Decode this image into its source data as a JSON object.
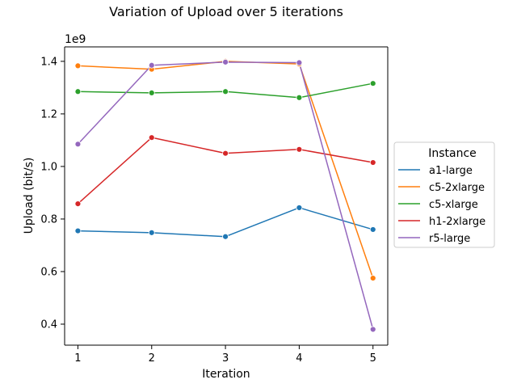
{
  "chart_data": {
    "type": "line",
    "title": "Variation of Upload over 5 iterations",
    "xlabel": "Iteration",
    "ylabel": "Upload (bit/s)",
    "y_offset_label": "1e9",
    "x": [
      1,
      2,
      3,
      4,
      5
    ],
    "x_tick_labels": [
      "1",
      "2",
      "3",
      "4",
      "5"
    ],
    "xlim": [
      0.82,
      5.2
    ],
    "ylim": [
      0.32,
      1.455
    ],
    "y_ticks": [
      0.4,
      0.6,
      0.8,
      1.0,
      1.2,
      1.4
    ],
    "y_tick_labels": [
      "0.4",
      "0.6",
      "0.8",
      "1.0",
      "1.2",
      "1.4"
    ],
    "grid": false,
    "legend": {
      "title": "Instance",
      "placement": "center-right outside"
    },
    "series": [
      {
        "name": "a1-large",
        "color": "#1f77b4",
        "values": [
          0.755,
          0.748,
          0.733,
          0.843,
          0.76
        ]
      },
      {
        "name": "c5-2xlarge",
        "color": "#ff7f0e",
        "values": [
          1.383,
          1.37,
          1.4,
          1.39,
          0.575
        ]
      },
      {
        "name": "c5-xlarge",
        "color": "#2ca02c",
        "values": [
          1.285,
          1.28,
          1.285,
          1.262,
          1.316
        ]
      },
      {
        "name": "h1-2xlarge",
        "color": "#d62728",
        "values": [
          0.858,
          1.11,
          1.05,
          1.065,
          1.015
        ]
      },
      {
        "name": "r5-large",
        "color": "#9467bd",
        "values": [
          1.085,
          1.385,
          1.397,
          1.395,
          0.38
        ]
      }
    ]
  }
}
